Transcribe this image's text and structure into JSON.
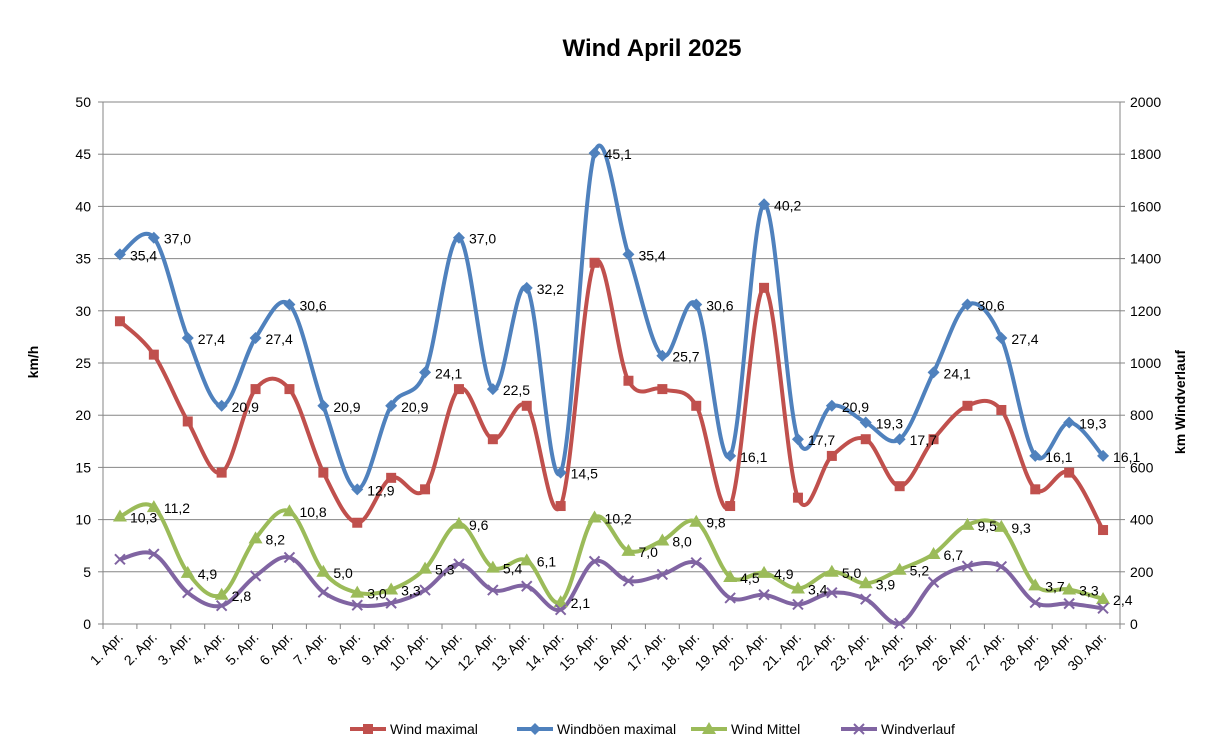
{
  "chart_data": {
    "type": "line",
    "title": "Wind April 2025",
    "ylabel": "km/h",
    "y2label": "km Windverlauf",
    "ylim": [
      0,
      50
    ],
    "y2lim": [
      0,
      2000
    ],
    "yticks": [
      "0",
      "5",
      "10",
      "15",
      "20",
      "25",
      "30",
      "35",
      "40",
      "45",
      "50"
    ],
    "y2ticks": [
      "0",
      "200",
      "400",
      "600",
      "800",
      "1000",
      "1200",
      "1400",
      "1600",
      "1800",
      "2000"
    ],
    "grid": true,
    "legend": "bottom",
    "categories": [
      "1. Apr.",
      "2. Apr.",
      "3. Apr.",
      "4. Apr.",
      "5. Apr.",
      "6. Apr.",
      "7. Apr.",
      "8. Apr.",
      "9. Apr.",
      "10. Apr.",
      "11. Apr.",
      "12. Apr.",
      "13. Apr.",
      "14. Apr.",
      "15. Apr.",
      "16. Apr.",
      "17. Apr.",
      "18. Apr.",
      "19. Apr.",
      "20. Apr.",
      "21. Apr.",
      "22. Apr.",
      "23. Apr.",
      "24. Apr.",
      "25. Apr.",
      "26. Apr.",
      "27. Apr.",
      "28. Apr.",
      "29. Apr.",
      "30. Apr."
    ],
    "series": [
      {
        "name": "Wind maximal",
        "color": "#c0504d",
        "marker": "square",
        "axis": "left",
        "values": [
          29.0,
          25.8,
          19.4,
          14.5,
          22.5,
          22.5,
          14.5,
          9.7,
          14.0,
          12.9,
          22.5,
          17.7,
          20.9,
          11.3,
          34.6,
          23.3,
          22.5,
          20.9,
          11.3,
          32.2,
          12.1,
          16.1,
          17.7,
          13.2,
          17.7,
          20.9,
          20.5,
          12.9,
          14.5,
          9.0
        ]
      },
      {
        "name": "Windböen maximal",
        "color": "#4f81bd",
        "marker": "diamond",
        "axis": "left",
        "values": [
          35.4,
          37.0,
          27.4,
          20.9,
          27.4,
          30.6,
          20.9,
          12.9,
          20.9,
          24.1,
          37.0,
          22.5,
          32.2,
          14.5,
          45.1,
          35.4,
          25.7,
          30.6,
          16.1,
          40.2,
          17.7,
          20.9,
          19.3,
          17.7,
          24.1,
          30.6,
          27.4,
          16.1,
          19.3,
          16.1
        ],
        "labels": [
          "35,4",
          "37,0",
          "27,4",
          "20,9",
          "27,4",
          "30,6",
          "20,9",
          "12,9",
          "20,9",
          "24,1",
          "37,0",
          "22,5",
          "32,2",
          "14,5",
          "45,1",
          "35,4",
          "25,7",
          "30,6",
          "16,1",
          "40,2",
          "17,7",
          "20,9",
          "19,3",
          "17,7",
          "24,1",
          "30,6",
          "27,4",
          "16,1",
          "19,3",
          "16,1"
        ]
      },
      {
        "name": "Wind Mittel",
        "color": "#9bbb59",
        "marker": "triangle",
        "axis": "left",
        "values": [
          10.3,
          11.2,
          4.9,
          2.8,
          8.2,
          10.8,
          5.0,
          3.0,
          3.3,
          5.3,
          9.6,
          5.4,
          6.1,
          2.1,
          10.2,
          7.0,
          8.0,
          9.8,
          4.5,
          4.9,
          3.4,
          5.0,
          3.9,
          5.2,
          6.7,
          9.5,
          9.3,
          3.7,
          3.3,
          2.4
        ],
        "labels": [
          "10,3",
          "11,2",
          "4,9",
          "2,8",
          "8,2",
          "10,8",
          "5,0",
          "3,0",
          "3,3",
          "5,3",
          "9,6",
          "5,4",
          "6,1",
          "2,1",
          "10,2",
          "7,0",
          "8,0",
          "9,8",
          "4,5",
          "4,9",
          "3,4",
          "5,0",
          "3,9",
          "5,2",
          "6,7",
          "9,5",
          "9,3",
          "3,7",
          "3,3",
          "2,4"
        ]
      },
      {
        "name": "Windverlauf",
        "color": "#8064a2",
        "marker": "x",
        "axis": "right",
        "values": [
          248,
          268,
          120,
          70,
          184,
          255,
          122,
          72,
          80,
          130,
          230,
          130,
          145,
          55,
          240,
          165,
          190,
          235,
          100,
          112,
          75,
          120,
          95,
          2,
          160,
          222,
          220,
          82,
          78,
          60
        ]
      }
    ]
  }
}
